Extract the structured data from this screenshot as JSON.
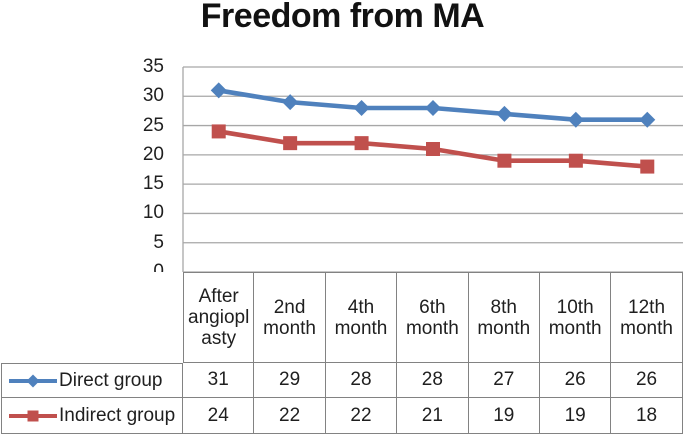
{
  "chart_data": {
    "type": "line",
    "title": "Freedom from MA",
    "categories": [
      "After angioplasty",
      "2nd month",
      "4th month",
      "6th month",
      "8th month",
      "10th month",
      "12th month"
    ],
    "series": [
      {
        "name": "Direct group",
        "marker": "diamond",
        "color": "#4F81BD",
        "values": [
          31,
          29,
          28,
          28,
          27,
          26,
          26
        ]
      },
      {
        "name": "Indirect group",
        "marker": "square",
        "color": "#C0504D",
        "values": [
          24,
          22,
          22,
          21,
          19,
          19,
          18
        ]
      }
    ],
    "xlabel": "",
    "ylabel": "",
    "ylim": [
      0,
      35
    ],
    "yticks": [
      35,
      30,
      25,
      20,
      15,
      10,
      5,
      0
    ],
    "grid": true,
    "grid_color": "#A7A7A7",
    "border_color": "#828282",
    "legend_position": "data-table-left",
    "data_table_shown": true
  }
}
